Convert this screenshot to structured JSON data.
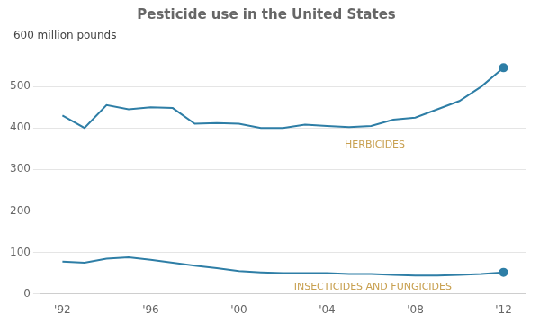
{
  "chart_data": {
    "type": "line",
    "title": "Pesticide use in the United States",
    "ylabel": "600 million pounds",
    "series": [
      {
        "color": "#2e7ea6",
        "x": [
          1992,
          1993,
          1994,
          1995,
          1996,
          1997,
          1998,
          1999,
          2000,
          2001,
          2002,
          2003,
          2004,
          2005,
          2006,
          2007,
          2008,
          2009,
          2010,
          2011,
          2012
        ],
        "values": [
          430,
          400,
          455,
          445,
          450,
          448,
          410,
          412,
          410,
          400,
          400,
          408,
          405,
          402,
          405,
          420,
          425,
          445,
          465,
          500,
          545
        ]
      },
      {
        "color": "#2e7ea6",
        "x": [
          1992,
          1993,
          1994,
          1995,
          1996,
          1997,
          1998,
          1999,
          2000,
          2001,
          2002,
          2003,
          2004,
          2005,
          2006,
          2007,
          2008,
          2009,
          2010,
          2011,
          2012
        ],
        "values": [
          78,
          75,
          85,
          88,
          82,
          75,
          68,
          62,
          55,
          52,
          50,
          50,
          50,
          48,
          48,
          46,
          44,
          44,
          46,
          48,
          52
        ]
      }
    ],
    "annotations": [
      {
        "text": "HERBICIDES",
        "x": 2004.8,
        "y": 358,
        "color": "#c8a050"
      },
      {
        "text": "INSECTICIDES AND FUNGICIDES",
        "x": 2002.5,
        "y": 16,
        "color": "#c8a050"
      }
    ],
    "xlim": [
      1991,
      2013
    ],
    "xticks": [
      {
        "value": 1992,
        "label": "'92"
      },
      {
        "value": 1996,
        "label": "'96"
      },
      {
        "value": 2000,
        "label": "'00"
      },
      {
        "value": 2004,
        "label": "'04"
      },
      {
        "value": 2008,
        "label": "'08"
      },
      {
        "value": 2012,
        "label": "'12"
      }
    ],
    "ylim": [
      0,
      600
    ],
    "yticks": [
      0,
      100,
      200,
      300,
      400,
      500
    ],
    "grid": "y"
  }
}
